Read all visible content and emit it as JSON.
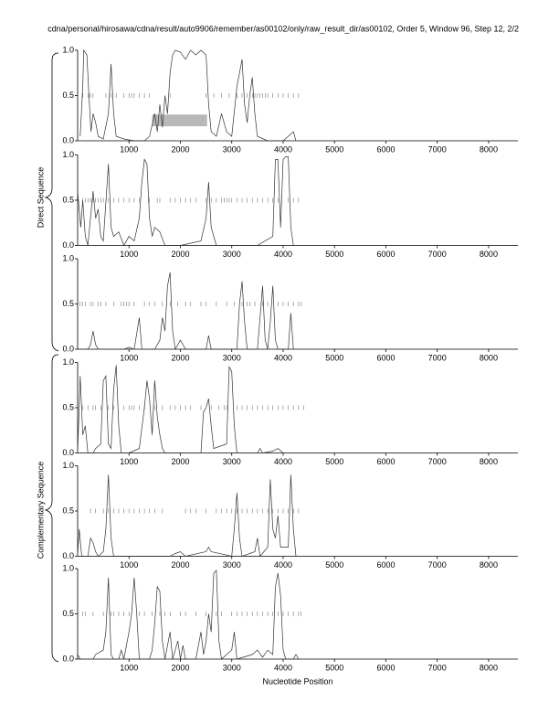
{
  "title": "cdna/personal/hirosawa/cdna/result/auto9906/remember/as00102/only/raw_result_dir/as00102, Order 5, Window 96, Step 12, 2/2",
  "x_label": "Nucleotide Position",
  "groups": [
    "Direct Sequence",
    "Complementary Sequence"
  ],
  "chart_data": [
    {
      "type": "line",
      "xlim": [
        0,
        8570
      ],
      "ylim": [
        0,
        1
      ],
      "xticks": [
        1000,
        2000,
        3000,
        4000,
        5000,
        6000,
        7000,
        8000
      ],
      "yticks": [
        {
          "value": 0,
          "label": "0.0"
        },
        {
          "value": 0.5,
          "label": "0.5"
        },
        {
          "value": 1,
          "label": "1.0"
        }
      ],
      "x": [
        50,
        100,
        120,
        180,
        220,
        260,
        300,
        350,
        400,
        500,
        600,
        650,
        700,
        750,
        900,
        1100,
        1300,
        1400,
        1500,
        1550,
        1600,
        1650,
        1700,
        1750,
        1800,
        1850,
        1900,
        2000,
        2100,
        2200,
        2300,
        2400,
        2500,
        2550,
        2600,
        2700,
        2800,
        2900,
        3000,
        3100,
        3200,
        3250,
        3300,
        3350,
        3400,
        3450,
        3500,
        3700,
        4000,
        4200,
        4250
      ],
      "series": [
        {
          "color": "#333333",
          "values": [
            0.05,
            0.6,
            1.0,
            0.95,
            0.5,
            0.1,
            0.3,
            0.2,
            0.05,
            0.02,
            0.3,
            0.85,
            0.3,
            0.05,
            0.02,
            0.0,
            0.0,
            0.05,
            0.3,
            0.1,
            0.4,
            0.15,
            0.5,
            0.3,
            0.75,
            0.95,
            1.0,
            0.98,
            0.9,
            1.0,
            0.95,
            1.0,
            0.95,
            0.4,
            0.1,
            0.05,
            0.3,
            0.1,
            0.05,
            0.6,
            0.9,
            0.4,
            0.2,
            0.5,
            0.7,
            0.3,
            0.05,
            0.0,
            0.0,
            0.1,
            0.0
          ]
        }
      ],
      "stop_level": 0.5,
      "stops": [
        100,
        200,
        250,
        300,
        550,
        650,
        750,
        900,
        1000,
        1050,
        1100,
        1200,
        1300,
        1400,
        1800,
        2500,
        2650,
        2800,
        2950,
        3100,
        3200,
        3300,
        3400,
        3450,
        3500,
        3550,
        3600,
        3650,
        3700,
        3800,
        3900,
        4000,
        4100,
        4200,
        4300
      ],
      "highlight": {
        "x": [
          1450,
          2520
        ],
        "y": [
          0.16,
          0.29
        ]
      }
    },
    {
      "type": "line",
      "xlim": [
        0,
        8570
      ],
      "ylim": [
        0,
        1
      ],
      "xticks": [
        1000,
        2000,
        3000,
        4000,
        5000,
        6000,
        7000,
        8000
      ],
      "yticks": [
        {
          "value": 0,
          "label": "0.0"
        },
        {
          "value": 0.5,
          "label": "0.5"
        },
        {
          "value": 1,
          "label": "1.0"
        }
      ],
      "x": [
        0,
        30,
        60,
        100,
        150,
        200,
        300,
        350,
        400,
        450,
        500,
        600,
        650,
        700,
        800,
        900,
        1000,
        1100,
        1200,
        1250,
        1300,
        1350,
        1400,
        1450,
        1500,
        1600,
        1700,
        2000,
        2400,
        2500,
        2550,
        2600,
        2700,
        3000,
        3500,
        3800,
        3850,
        3900,
        3950,
        4000,
        4050,
        4100,
        4150,
        4200
      ],
      "series": [
        {
          "color": "#333333",
          "values": [
            0.6,
            0.4,
            0.2,
            0.5,
            0.1,
            0.0,
            0.6,
            0.3,
            0.4,
            0.1,
            0.05,
            0.9,
            0.2,
            0.1,
            0.15,
            0.0,
            0.1,
            0.05,
            0.3,
            0.7,
            0.95,
            0.9,
            0.3,
            0.1,
            0.2,
            0.15,
            0.0,
            0.0,
            0.05,
            0.3,
            0.7,
            0.2,
            0.0,
            0.0,
            0.0,
            0.1,
            0.95,
            0.95,
            0.2,
            0.95,
            0.98,
            0.98,
            0.2,
            0.0
          ]
        }
      ],
      "stop_level": 0.5,
      "stops": [
        100,
        150,
        200,
        250,
        300,
        350,
        400,
        450,
        500,
        600,
        700,
        800,
        900,
        1000,
        1100,
        1200,
        1400,
        1550,
        1600,
        1800,
        1900,
        2000,
        2100,
        2200,
        2300,
        2500,
        2600,
        2700,
        2800,
        2850,
        2900,
        2950,
        3000,
        3100,
        3200,
        3300,
        3400,
        3500,
        3600,
        3700,
        3800,
        3900,
        4100,
        4200,
        4300
      ]
    },
    {
      "type": "line",
      "xlim": [
        0,
        8570
      ],
      "ylim": [
        0,
        1
      ],
      "xticks": [
        1000,
        2000,
        3000,
        4000,
        5000,
        6000,
        7000,
        8000
      ],
      "yticks": [
        {
          "value": 0,
          "label": "0.0"
        },
        {
          "value": 0.5,
          "label": "0.5"
        },
        {
          "value": 1,
          "label": "1.0"
        }
      ],
      "x": [
        0,
        200,
        250,
        300,
        350,
        400,
        900,
        1000,
        1100,
        1200,
        1250,
        1500,
        1600,
        1650,
        1700,
        1750,
        1800,
        1850,
        1900,
        2000,
        2100,
        2500,
        2550,
        2600,
        3100,
        3150,
        3200,
        3250,
        3300,
        3500,
        3550,
        3600,
        3650,
        3700,
        3750,
        3800,
        3850,
        3900,
        4100,
        4150,
        4200
      ],
      "series": [
        {
          "color": "#333333",
          "values": [
            0.0,
            0.0,
            0.05,
            0.2,
            0.05,
            0.0,
            0.0,
            0.02,
            0.0,
            0.35,
            0.0,
            0.0,
            0.1,
            0.35,
            0.2,
            0.7,
            0.85,
            0.2,
            0.0,
            0.1,
            0.0,
            0.0,
            0.15,
            0.0,
            0.0,
            0.5,
            0.75,
            0.3,
            0.0,
            0.0,
            0.35,
            0.7,
            0.1,
            0.0,
            0.3,
            0.7,
            0.1,
            0.0,
            0.0,
            0.4,
            0.0
          ]
        }
      ],
      "stop_level": 0.5,
      "stops": [
        50,
        100,
        150,
        250,
        300,
        400,
        450,
        550,
        700,
        850,
        900,
        950,
        1000,
        1100,
        1300,
        1400,
        1500,
        1650,
        1800,
        1950,
        2100,
        2200,
        2400,
        2500,
        2700,
        2900,
        3050,
        3200,
        3300,
        3350,
        3450,
        3600,
        3700,
        3900,
        4000,
        4100,
        4200,
        4300,
        4350
      ]
    },
    {
      "type": "line",
      "xlim": [
        0,
        8570
      ],
      "ylim": [
        0,
        1
      ],
      "xticks": [
        1000,
        2000,
        3000,
        4000,
        5000,
        6000,
        7000,
        8000
      ],
      "yticks": [
        {
          "value": 0,
          "label": "0.0"
        },
        {
          "value": 0.5,
          "label": "0.5"
        },
        {
          "value": 1,
          "label": "1.0"
        }
      ],
      "x": [
        0,
        50,
        100,
        150,
        200,
        300,
        350,
        450,
        500,
        550,
        600,
        650,
        700,
        750,
        800,
        850,
        1000,
        1200,
        1300,
        1350,
        1400,
        1450,
        1500,
        1550,
        1600,
        1650,
        1700,
        2400,
        2450,
        2500,
        2550,
        2600,
        2650,
        2900,
        2950,
        3000,
        3050,
        3100,
        3500,
        3550,
        3600,
        3800,
        3900,
        4000
      ],
      "series": [
        {
          "color": "#333333",
          "values": [
            0.0,
            0.85,
            0.2,
            0.3,
            0.0,
            0.0,
            0.05,
            0.1,
            0.8,
            0.85,
            0.1,
            0.05,
            0.7,
            0.97,
            0.3,
            0.0,
            0.0,
            0.05,
            0.5,
            0.8,
            0.6,
            0.2,
            0.8,
            0.4,
            0.2,
            0.05,
            0.0,
            0.0,
            0.45,
            0.5,
            0.6,
            0.3,
            0.05,
            0.1,
            0.95,
            0.9,
            0.3,
            0.0,
            0.0,
            0.05,
            0.0,
            0.02,
            0.05,
            0.0
          ]
        }
      ],
      "stop_level": 0.5,
      "stops": [
        100,
        200,
        300,
        350,
        450,
        600,
        700,
        900,
        1000,
        1050,
        1100,
        1200,
        1300,
        1500,
        1650,
        1800,
        1900,
        2000,
        2100,
        2200,
        2400,
        2600,
        2750,
        2850,
        2900,
        3100,
        3200,
        3300,
        3400,
        3500,
        3600,
        3700,
        3800,
        3900,
        4000,
        4100,
        4200,
        4300,
        4400
      ]
    },
    {
      "type": "line",
      "xlim": [
        0,
        8570
      ],
      "ylim": [
        0,
        1
      ],
      "xticks": [
        1000,
        2000,
        3000,
        4000,
        5000,
        6000,
        7000,
        8000
      ],
      "yticks": [
        {
          "value": 0,
          "label": "0.0"
        },
        {
          "value": 0.5,
          "label": "0.5"
        },
        {
          "value": 1,
          "label": "1.0"
        }
      ],
      "x": [
        0,
        30,
        80,
        200,
        250,
        300,
        350,
        400,
        500,
        550,
        600,
        650,
        700,
        1800,
        1900,
        2000,
        2100,
        2500,
        2550,
        2600,
        3000,
        3050,
        3100,
        3150,
        3200,
        3450,
        3500,
        3550,
        3700,
        3750,
        3800,
        3850,
        3900,
        3950,
        4100,
        4150,
        4200,
        4250
      ],
      "series": [
        {
          "color": "#333333",
          "values": [
            0.0,
            0.3,
            0.0,
            0.0,
            0.2,
            0.15,
            0.05,
            0.0,
            0.05,
            0.3,
            0.9,
            0.2,
            0.0,
            0.0,
            0.03,
            0.05,
            0.0,
            0.05,
            0.1,
            0.05,
            0.0,
            0.3,
            0.7,
            0.2,
            0.0,
            0.05,
            0.2,
            0.0,
            0.1,
            0.85,
            0.3,
            0.2,
            0.45,
            0.1,
            0.1,
            0.9,
            0.3,
            0.0
          ]
        }
      ],
      "stop_level": 0.5,
      "stops": [
        250,
        350,
        500,
        600,
        700,
        800,
        900,
        1000,
        1100,
        1200,
        1300,
        1400,
        1500,
        1650,
        2100,
        2200,
        2300,
        2500,
        2700,
        2800,
        2900,
        3000,
        3100,
        3200,
        3300,
        3400,
        3500,
        3600,
        3700,
        3800,
        3900,
        4000,
        4100,
        4200,
        4300
      ]
    },
    {
      "type": "line",
      "xlim": [
        0,
        8570
      ],
      "ylim": [
        0,
        1
      ],
      "xticks": [
        1000,
        2000,
        3000,
        4000,
        5000,
        6000,
        7000,
        8000
      ],
      "yticks": [
        {
          "value": 0,
          "label": "0.0"
        },
        {
          "value": 0.5,
          "label": "0.5"
        },
        {
          "value": 1,
          "label": "1.0"
        }
      ],
      "x": [
        0,
        50,
        300,
        350,
        500,
        550,
        600,
        650,
        700,
        800,
        850,
        900,
        1000,
        1050,
        1100,
        1150,
        1200,
        1400,
        1450,
        1500,
        1550,
        1600,
        1650,
        1700,
        1800,
        1850,
        1950,
        2000,
        2050,
        2100,
        2300,
        2400,
        2450,
        2500,
        2550,
        2600,
        2650,
        2700,
        2750,
        2800,
        3000,
        3050,
        3100,
        3400,
        3500,
        3600,
        3700,
        3800,
        3850,
        3900,
        3950,
        4000,
        4050,
        4200,
        4250,
        4300
      ],
      "series": [
        {
          "color": "#333333",
          "values": [
            0.05,
            0.0,
            0.0,
            0.05,
            0.1,
            0.3,
            0.9,
            0.05,
            0.0,
            0.0,
            0.1,
            0.0,
            0.3,
            0.5,
            0.9,
            0.5,
            0.0,
            0.0,
            0.1,
            0.4,
            0.8,
            0.75,
            0.2,
            0.0,
            0.3,
            0.0,
            0.2,
            0.0,
            0.15,
            0.0,
            0.0,
            0.3,
            0.05,
            0.2,
            0.5,
            0.3,
            0.95,
            0.98,
            0.2,
            0.0,
            0.1,
            0.3,
            0.0,
            0.05,
            0.1,
            0.02,
            0.1,
            0.05,
            0.8,
            0.95,
            0.7,
            0.1,
            0.0,
            0.0,
            0.05,
            0.0
          ]
        }
      ],
      "stop_level": 0.5,
      "stops": [
        100,
        150,
        300,
        500,
        650,
        700,
        800,
        900,
        1000,
        1200,
        1300,
        1450,
        1600,
        1700,
        1800,
        2000,
        2100,
        2300,
        2500,
        2700,
        2800,
        3000,
        3100,
        3200,
        3300,
        3400,
        3500,
        3600,
        3700,
        3800,
        3900,
        4000,
        4100,
        4200,
        4300,
        4350
      ]
    }
  ]
}
